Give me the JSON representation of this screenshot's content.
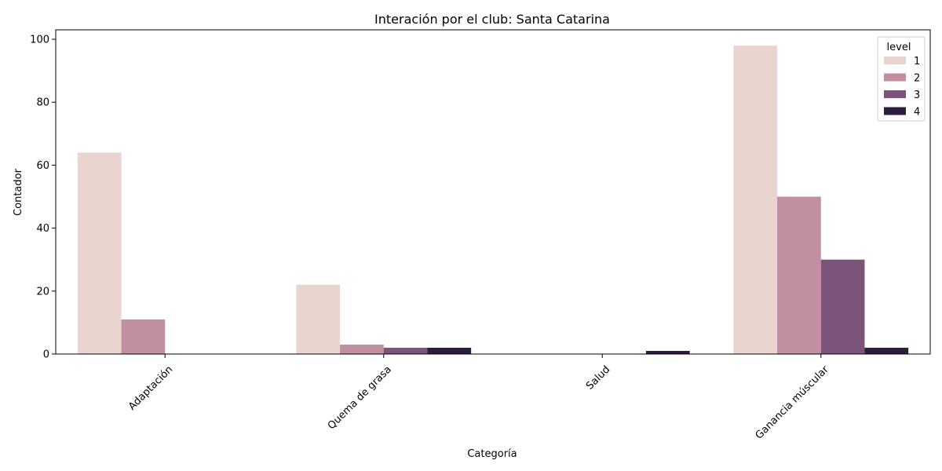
{
  "chart_data": {
    "type": "bar",
    "title": "Interación por el club: Santa Catarina",
    "xlabel": "Categoría",
    "ylabel": "Contador",
    "categories": [
      "Adaptación",
      "Quema de grasa",
      "Salud",
      "Ganancia múscular"
    ],
    "ylim": [
      0,
      103
    ],
    "yticks": [
      0,
      20,
      40,
      60,
      80,
      100
    ],
    "grid": false,
    "legend": {
      "title": "level",
      "position": "top-right"
    },
    "series": [
      {
        "name": "1",
        "color": "#e9d4d0",
        "values": [
          64,
          22,
          0,
          98
        ]
      },
      {
        "name": "2",
        "color": "#c18fa0",
        "values": [
          11,
          3,
          0,
          50
        ]
      },
      {
        "name": "3",
        "color": "#7c5479",
        "values": [
          0,
          2,
          0,
          30
        ]
      },
      {
        "name": "4",
        "color": "#2d1e3e",
        "values": [
          0,
          2,
          1,
          2
        ]
      }
    ]
  }
}
